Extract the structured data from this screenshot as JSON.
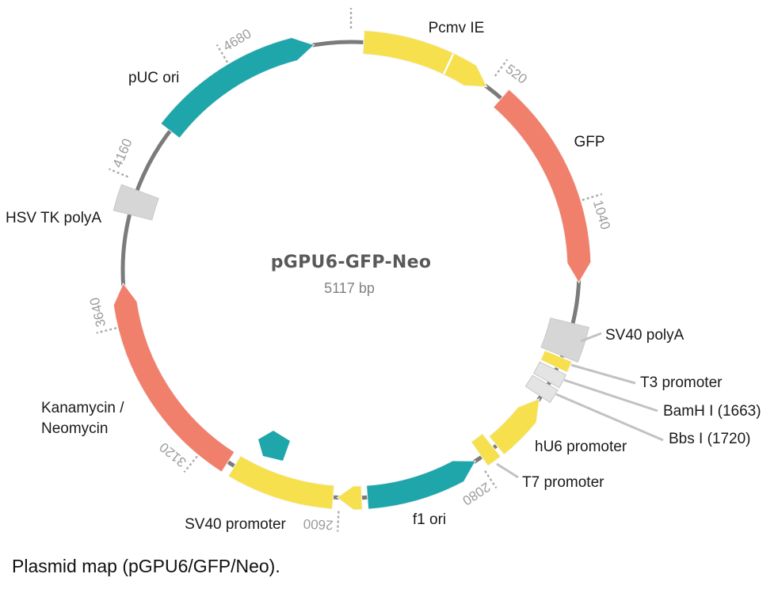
{
  "figure": {
    "title": "pGPU6-GFP-Neo",
    "size_label": "5117 bp",
    "caption": "Plasmid map (pGPU6/GFP/Neo).",
    "length_bp": 5117
  },
  "colors": {
    "yellow": "#F6E04E",
    "salmon": "#F0806C",
    "teal": "#1FA6AB",
    "gray_block": "#D6D6D6",
    "light_block": "#E4E4E4",
    "ring": "#7B7B7B",
    "tick_text": "#9C9C9C",
    "tick_dash": "#ABABAB",
    "leader": "#C2C2C2",
    "label": "#1A1A1A",
    "title": "#595959",
    "subtitle": "#828282"
  },
  "ticks": [
    {
      "pos": 0,
      "label": ""
    },
    {
      "pos": 520,
      "label": "520"
    },
    {
      "pos": 1040,
      "label": "1040"
    },
    {
      "pos": 2080,
      "label": "2080"
    },
    {
      "pos": 2600,
      "label": "2600"
    },
    {
      "pos": 3120,
      "label": "3120"
    },
    {
      "pos": 3640,
      "label": "3640"
    },
    {
      "pos": 4160,
      "label": "4160"
    },
    {
      "pos": 4680,
      "label": "4680"
    }
  ],
  "features": [
    {
      "id": "pcmv-ie",
      "label": "Pcmv IE",
      "color": "yellow",
      "shape": "arrow",
      "dir": "cw",
      "start": 45,
      "end": 520,
      "divider_at": 360
    },
    {
      "id": "gfp",
      "label": "GFP",
      "color": "salmon",
      "shape": "arrow",
      "dir": "cw",
      "start": 585,
      "end": 1325
    },
    {
      "id": "sv40-polya",
      "label": "SV40 polyA",
      "color": "gray_block",
      "shape": "block",
      "start": 1472,
      "end": 1594,
      "wide": true
    },
    {
      "id": "t3-promoter",
      "label": "T3 promoter",
      "color": "yellow",
      "shape": "block",
      "start": 1600,
      "end": 1640
    },
    {
      "id": "bamh-i",
      "label": "BamH I (1663)",
      "color": "light_block",
      "shape": "block",
      "start": 1649,
      "end": 1699
    },
    {
      "id": "bbs-i",
      "label": "Bbs I (1720)",
      "color": "light_block",
      "shape": "block",
      "start": 1708,
      "end": 1758
    },
    {
      "id": "hu6-promoter",
      "label": "hU6 promoter",
      "color": "yellow",
      "shape": "arrow",
      "dir": "ccw",
      "start": 1768,
      "end": 1995
    },
    {
      "id": "t7-promoter",
      "label": "T7 promoter",
      "color": "yellow",
      "shape": "block",
      "start": 2008,
      "end": 2062
    },
    {
      "id": "f1-ori",
      "label": "f1 ori",
      "color": "teal",
      "shape": "arrow",
      "dir": "ccw",
      "start": 2088,
      "end": 2500
    },
    {
      "id": "sv40-promoter-head",
      "label": "",
      "color": "yellow",
      "shape": "arrow",
      "dir": "cw",
      "start": 2520,
      "end": 2608,
      "tip_bp": 58
    },
    {
      "id": "sv40-promoter",
      "label": "SV40 promoter",
      "color": "yellow",
      "shape": "block",
      "start": 2622,
      "end": 2995
    },
    {
      "id": "kanamycin-neomycin",
      "label": "Kanamycin / Neomycin",
      "label_lines": [
        "Kanamycin /",
        "Neomycin"
      ],
      "color": "salmon",
      "shape": "arrow",
      "dir": "cw",
      "start": 3022,
      "end": 3790
    },
    {
      "id": "hsv-tk-polya",
      "label": "HSV TK polyA",
      "color": "gray_block",
      "shape": "block",
      "start": 4038,
      "end": 4128,
      "wide": true
    },
    {
      "id": "puc-ori",
      "label": "pUC ori",
      "color": "teal",
      "shape": "arrow",
      "dir": "cw",
      "start": 4372,
      "end": 4985
    }
  ]
}
